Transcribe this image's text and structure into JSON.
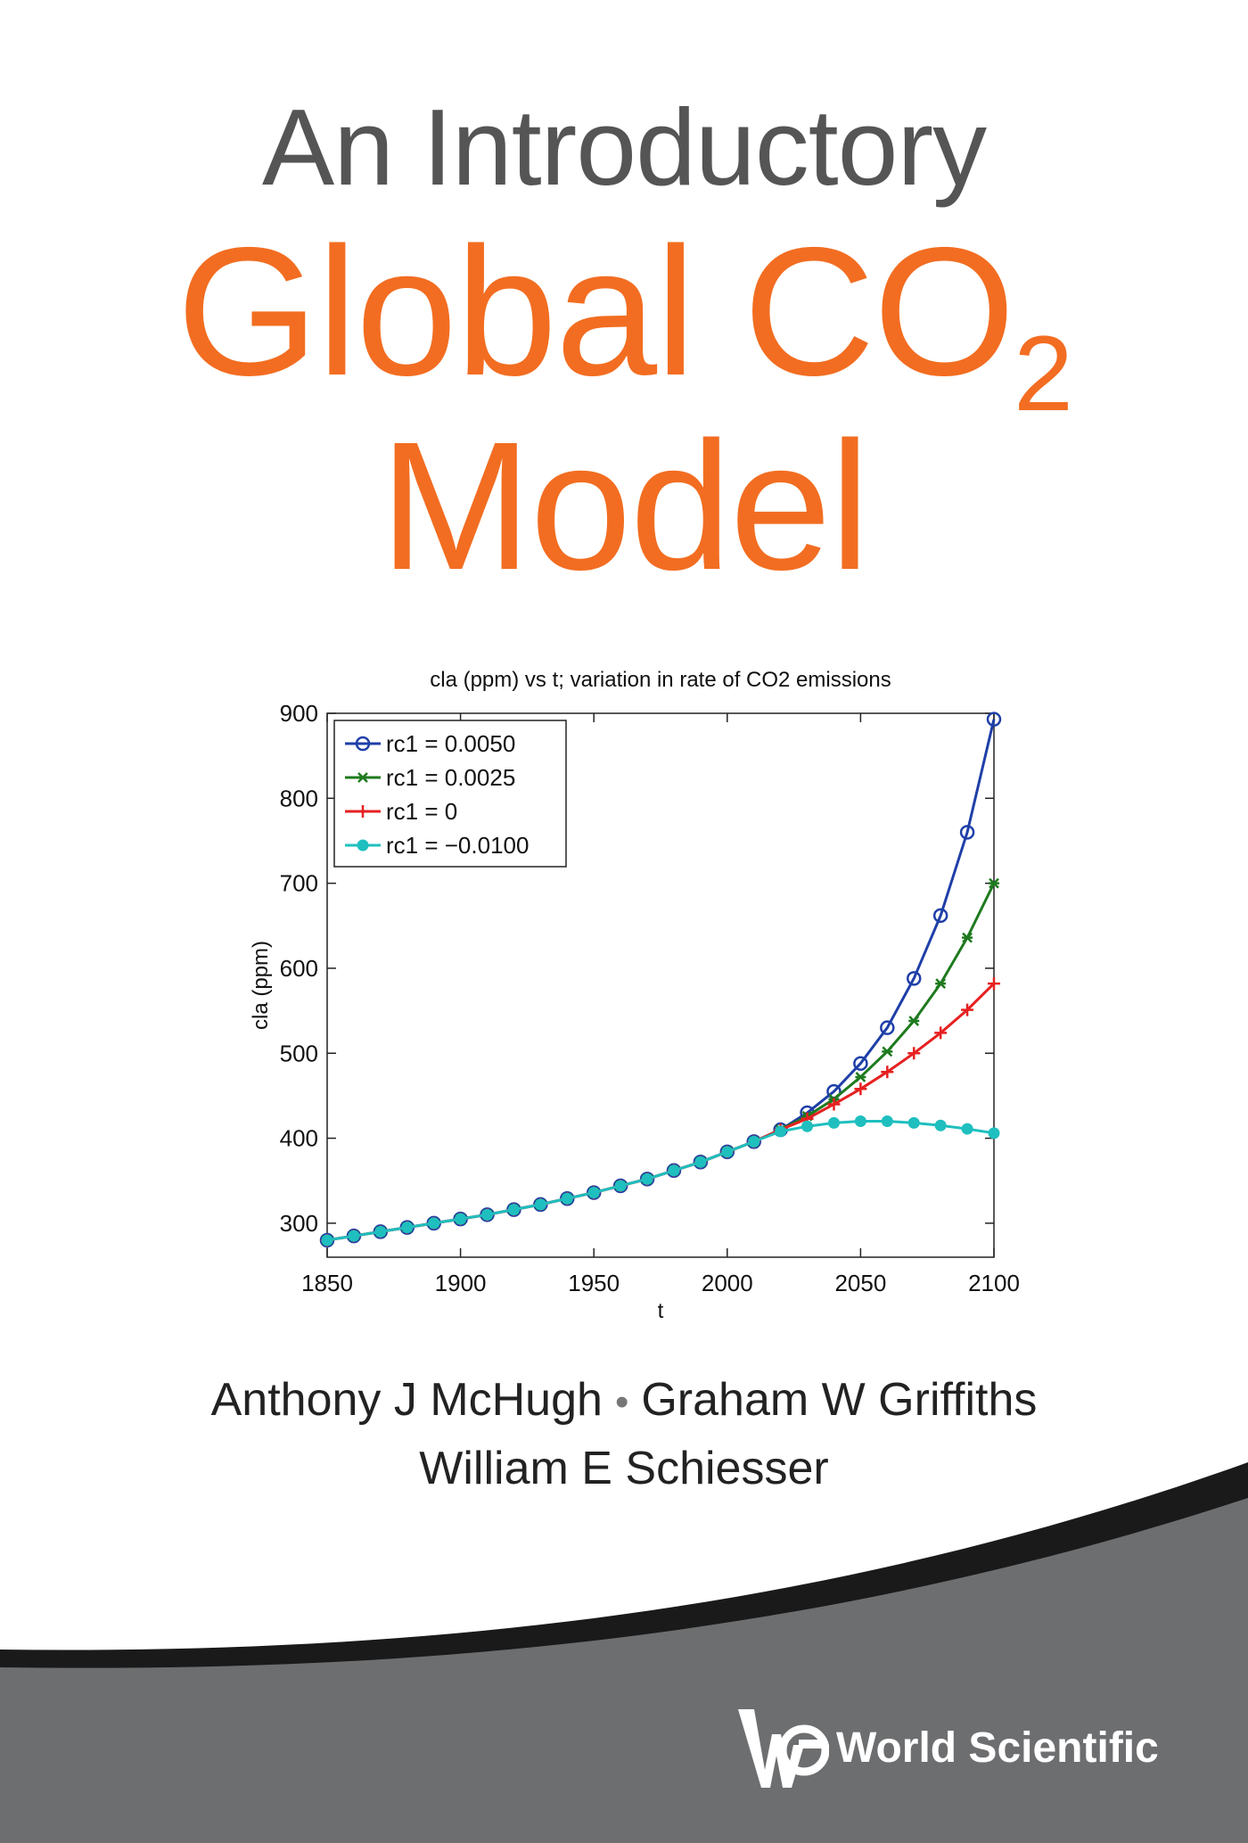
{
  "cover": {
    "title_line1": "An Introductory",
    "title_line2_main": "Global CO",
    "title_line2_sub": "2",
    "title_line3": "Model",
    "author_1": "Anthony J McHugh",
    "author_sep": "•",
    "author_2": "Graham W Griffiths",
    "author_3": "William E Schiesser",
    "publisher": "World Scientific",
    "publisher_logo_icon": "world-scientific-logo-icon",
    "colors": {
      "title_orange": "#f26d21",
      "title_grey": "#555555",
      "band_grey": "#6d6e70",
      "band_dark": "#1a1a1a"
    }
  },
  "chart_data": {
    "type": "line",
    "title": "cla (ppm) vs t; variation in rate of CO2 emissions",
    "xlabel": "t",
    "ylabel": "cla (ppm)",
    "xlim": [
      1850,
      2100
    ],
    "ylim": [
      260,
      900
    ],
    "xticks": [
      1850,
      1900,
      1950,
      2000,
      2050,
      2100
    ],
    "yticks": [
      300,
      400,
      500,
      600,
      700,
      800,
      900
    ],
    "legend_position": "top-left",
    "x": [
      1850,
      1860,
      1870,
      1880,
      1890,
      1900,
      1910,
      1920,
      1930,
      1940,
      1950,
      1960,
      1970,
      1980,
      1990,
      2000,
      2010,
      2020,
      2030,
      2040,
      2050,
      2060,
      2070,
      2080,
      2090,
      2100
    ],
    "series": [
      {
        "name": "rc1 = 0.0050",
        "color": "#1f3fa8",
        "marker": "circle-open",
        "values": [
          280,
          285,
          290,
          295,
          300,
          305,
          310,
          316,
          322,
          329,
          336,
          344,
          352,
          362,
          372,
          384,
          396,
          410,
          430,
          455,
          488,
          530,
          588,
          662,
          760,
          893
        ]
      },
      {
        "name": "rc1 = 0.0025",
        "color": "#1e7a1e",
        "marker": "x",
        "values": [
          280,
          285,
          290,
          295,
          300,
          305,
          310,
          316,
          322,
          329,
          336,
          344,
          352,
          362,
          372,
          384,
          396,
          410,
          426,
          446,
          472,
          502,
          538,
          582,
          636,
          700
        ]
      },
      {
        "name": "rc1 = 0",
        "color": "#e62020",
        "marker": "plus",
        "values": [
          280,
          285,
          290,
          295,
          300,
          305,
          310,
          316,
          322,
          329,
          336,
          344,
          352,
          362,
          372,
          384,
          396,
          410,
          423,
          440,
          458,
          478,
          500,
          524,
          551,
          582
        ]
      },
      {
        "name": "rc1 = −0.0100",
        "color": "#1fbfbf",
        "marker": "dot",
        "values": [
          280,
          285,
          290,
          295,
          300,
          305,
          310,
          316,
          322,
          329,
          336,
          344,
          352,
          362,
          372,
          384,
          396,
          408,
          414,
          418,
          420,
          420,
          418,
          415,
          411,
          406
        ]
      }
    ]
  }
}
